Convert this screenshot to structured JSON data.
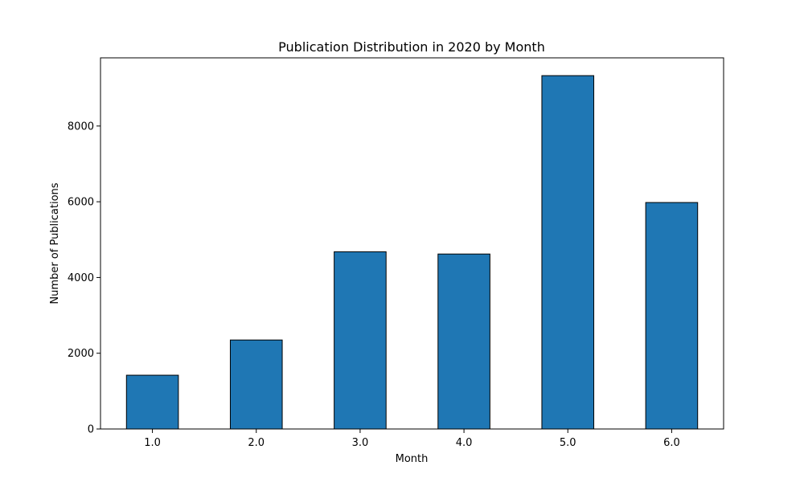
{
  "chart_data": {
    "type": "bar",
    "title": "Publication Distribution in 2020 by Month",
    "xlabel": "Month",
    "ylabel": "Number of Publications",
    "categories": [
      "1.0",
      "2.0",
      "3.0",
      "4.0",
      "5.0",
      "6.0"
    ],
    "values": [
      1420,
      2350,
      4680,
      4620,
      9330,
      5980
    ],
    "yticks": [
      0,
      2000,
      4000,
      6000,
      8000
    ],
    "ytick_labels": [
      "0",
      "2000",
      "4000",
      "6000",
      "8000"
    ],
    "ylim": [
      0,
      9800
    ],
    "grid": false,
    "legend": "none",
    "bar_color": "#1f77b4",
    "edge_color": "#000000"
  }
}
